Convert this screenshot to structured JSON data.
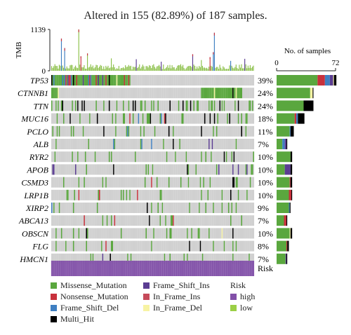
{
  "title": "Altered in 155 (82.89%) of 187 samples.",
  "chart_data": {
    "type": "oncoplot",
    "n_samples": 187,
    "tmb": {
      "label": "TMB",
      "ylim": [
        0,
        1139
      ],
      "tick_labels": [
        "1139",
        "0"
      ]
    },
    "genes": [
      "TP53",
      "CTNNB1",
      "TTN",
      "MUC16",
      "PCLO",
      "ALB",
      "RYR2",
      "APOB",
      "CSMD3",
      "LRP1B",
      "XIRP2",
      "ABCA13",
      "OBSCN",
      "FLG",
      "HMCN1"
    ],
    "percentages": [
      "39%",
      "24%",
      "24%",
      "18%",
      "11%",
      "7%",
      "10%",
      "10%",
      "10%",
      "10%",
      "9%",
      "7%",
      "10%",
      "8%",
      "7%"
    ],
    "altered_counts": [
      73,
      45,
      45,
      34,
      21,
      13,
      19,
      19,
      19,
      19,
      17,
      13,
      19,
      15,
      13
    ],
    "count_breakdown": [
      {
        "Missense_Mutation": 50,
        "Nonsense_Mutation": 9,
        "Frame_Shift_Del": 6,
        "Frame_Shift_Ins": 4,
        "Multi_Hit": 3,
        "In_Frame_Del": 1
      },
      {
        "Missense_Mutation": 41,
        "In_Frame_Del": 3,
        "Multi_Hit": 1
      },
      {
        "Missense_Mutation": 33,
        "Multi_Hit": 12
      },
      {
        "Missense_Mutation": 22,
        "Multi_Hit": 8,
        "Nonsense_Mutation": 2,
        "Frame_Shift_Del": 2
      },
      {
        "Missense_Mutation": 16,
        "Multi_Hit": 4,
        "Frame_Shift_Del": 1
      },
      {
        "Missense_Mutation": 7,
        "Frame_Shift_Del": 3,
        "Frame_Shift_Ins": 2,
        "Multi_Hit": 1
      },
      {
        "Missense_Mutation": 17,
        "Multi_Hit": 2
      },
      {
        "Missense_Mutation": 10,
        "Frame_Shift_Ins": 7,
        "Multi_Hit": 2
      },
      {
        "Missense_Mutation": 16,
        "Multi_Hit": 2,
        "Nonsense_Mutation": 1
      },
      {
        "Missense_Mutation": 15,
        "Nonsense_Mutation": 3,
        "Multi_Hit": 1
      },
      {
        "Missense_Mutation": 15,
        "Frame_Shift_Del": 1,
        "Multi_Hit": 1
      },
      {
        "Missense_Mutation": 9,
        "Nonsense_Mutation": 3,
        "Multi_Hit": 1
      },
      {
        "Missense_Mutation": 16,
        "Multi_Hit": 2,
        "In_Frame_Del": 1
      },
      {
        "Missense_Mutation": 12,
        "Multi_Hit": 2,
        "Nonsense_Mutation": 1
      },
      {
        "Missense_Mutation": 11,
        "Multi_Hit": 1,
        "Frame_Shift_Ins": 1
      }
    ],
    "count_axis": {
      "label": "No. of samples",
      "range": [
        0,
        72
      ],
      "tick_labels": [
        "0",
        "72"
      ]
    },
    "risk": {
      "label": "Risk",
      "value": "high"
    },
    "legend": {
      "variants": [
        "Missense_Mutation",
        "Nonsense_Mutation",
        "Frame_Shift_Del",
        "Multi_Hit",
        "Frame_Shift_Ins",
        "In_Frame_Ins",
        "In_Frame_Del"
      ],
      "risk_title": "Risk",
      "risk_levels": [
        "high",
        "low"
      ]
    }
  },
  "colors": {
    "Missense_Mutation": "#5aa73e",
    "Nonsense_Mutation": "#c8313c",
    "Frame_Shift_Del": "#3f7fc1",
    "Multi_Hit": "#000000",
    "Frame_Shift_Ins": "#5b3d92",
    "In_Frame_Ins": "#c64a5a",
    "In_Frame_Del": "#f7f3a3",
    "high": "#8250a8",
    "low": "#9bcf45",
    "empty_cell": "#d0d0d0",
    "tmb_bar": "#8cc04a"
  }
}
